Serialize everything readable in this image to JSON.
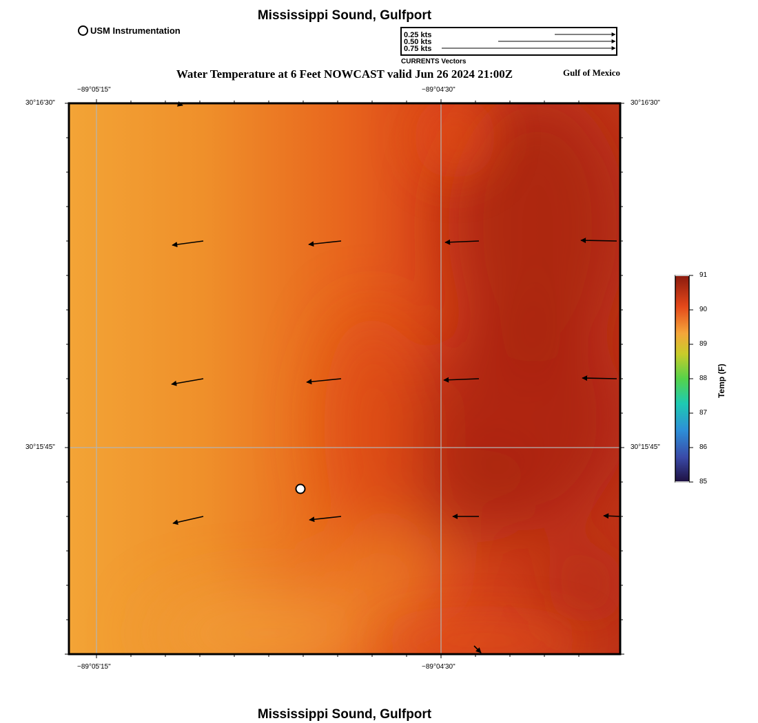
{
  "header": {
    "title": "Mississippi Sound, Gulfport",
    "subtitle": "Water Temperature at 6 Feet NOWCAST valid Jun 26 2024 21:00Z",
    "region": "Gulf of Mexico"
  },
  "footer": {
    "title": "Mississippi Sound, Gulfport"
  },
  "legend": {
    "usm_label": "USM Instrumentation",
    "vector_rows": [
      "0.25 kts",
      "0.50 kts",
      "0.75 kts"
    ],
    "vector_caption": "CURRENTS Vectors"
  },
  "map": {
    "longitude_labels": [
      "−89°05'15\"",
      "−89°04'30\""
    ],
    "latitude_labels": [
      "30°16'30\"",
      "30°15'45\""
    ],
    "colors": {
      "frame": "#000000",
      "grid": "#b4b4b4",
      "warm_light": "#f3a436",
      "warm_mid": "#e3501a",
      "warm_dark": "#a8230c"
    }
  },
  "colorbar": {
    "label": "Temp (F)",
    "ticks": [
      "91",
      "90",
      "89",
      "88",
      "87",
      "86",
      "85"
    ]
  }
}
